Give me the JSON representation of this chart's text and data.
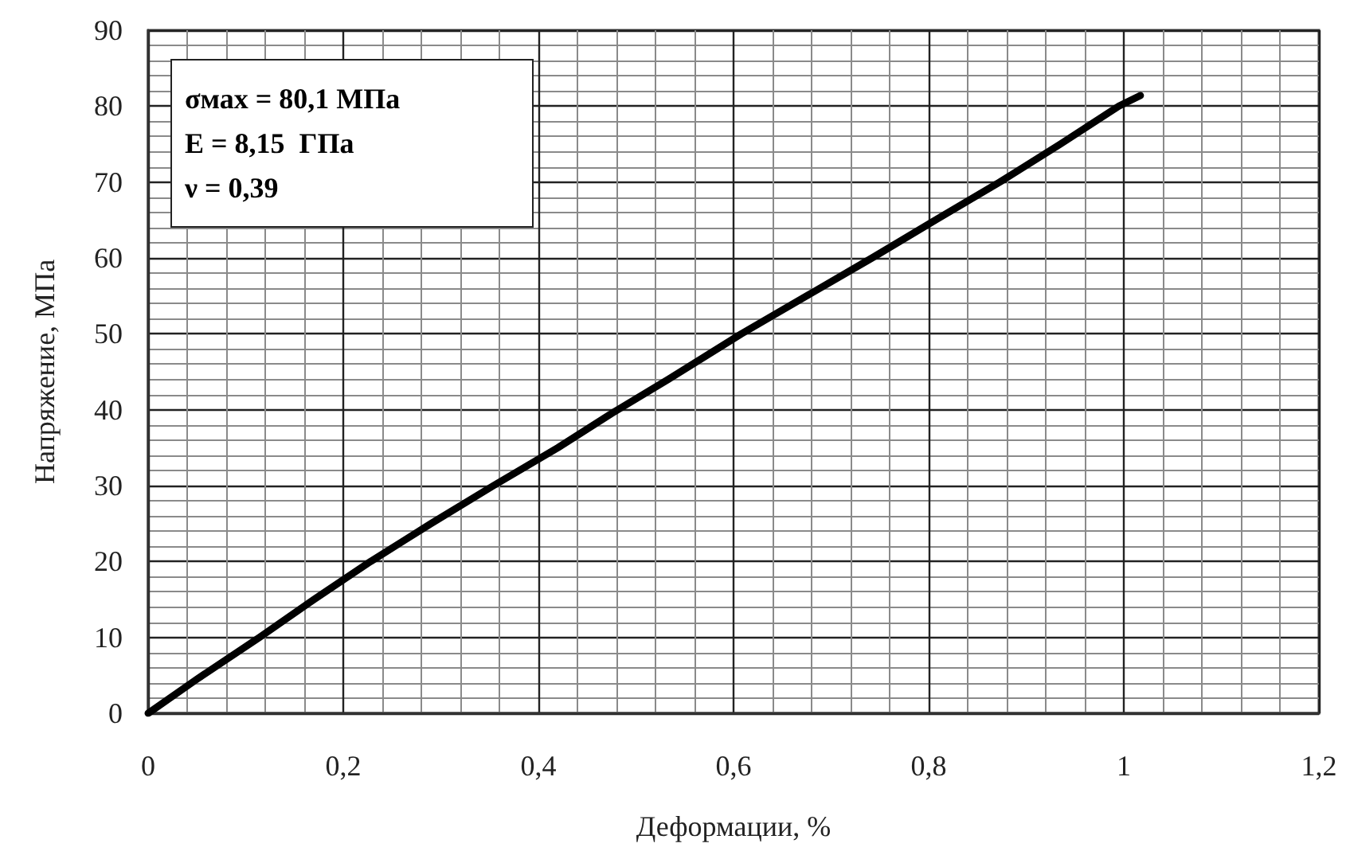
{
  "chart_data": {
    "type": "line",
    "xlabel": "Деформации, %",
    "ylabel": "Напряжение, МПа",
    "annotations": [
      "σмах = 80,1 МПа",
      "E = 8,15  ГПа",
      "ν = 0,39"
    ],
    "x": [
      0,
      0.05,
      0.114,
      0.17,
      0.228,
      0.29,
      0.354,
      0.42,
      0.475,
      0.533,
      0.608,
      0.675,
      0.742,
      0.807,
      0.873,
      0.935,
      0.995,
      1.017
    ],
    "values": [
      0,
      4.5,
      10,
      15,
      20,
      25,
      30,
      35,
      39.5,
      44,
      50,
      55,
      60,
      65,
      70,
      75,
      80,
      81.4
    ],
    "color": "#000000",
    "xlim": [
      0,
      1.2
    ],
    "xticks": [
      0,
      {
        "value": 0.2,
        "label": "0,2"
      },
      {
        "value": 0.4,
        "label": "0,4"
      },
      {
        "value": 0.6,
        "label": "0,6"
      },
      {
        "value": 0.8,
        "label": "0,8"
      },
      1,
      {
        "value": 1.2,
        "label": "1,2"
      }
    ],
    "ylim": [
      0,
      90
    ],
    "yticks": [
      0,
      10,
      20,
      30,
      40,
      50,
      60,
      70,
      80,
      90
    ],
    "grid": true,
    "marker": "none",
    "line_style": "solid"
  }
}
